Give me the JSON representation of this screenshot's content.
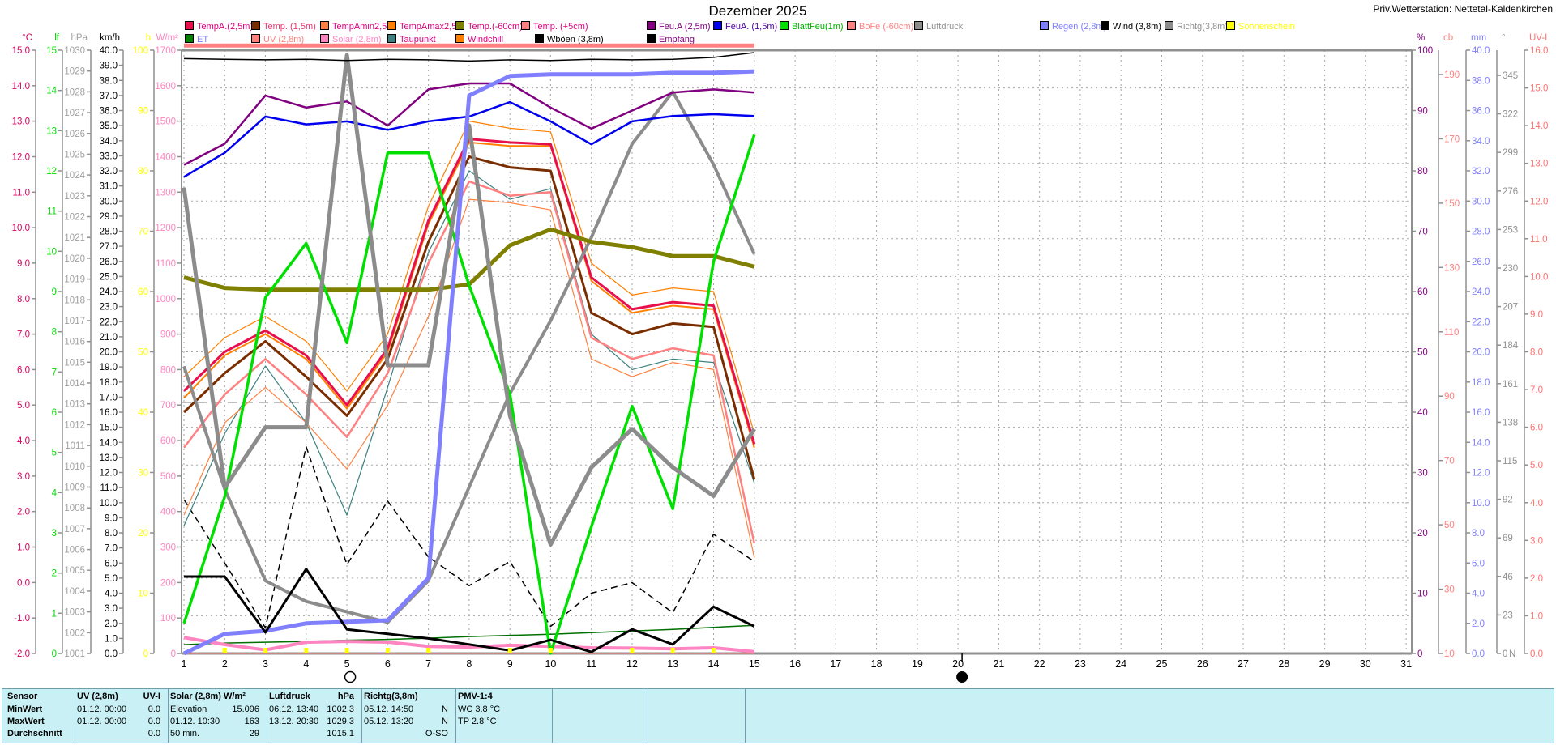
{
  "title": "Dezember 2025",
  "station": "Priv.Wetterstation: Nettetal-Kaldenkirchen",
  "legend": {
    "row1": [
      {
        "id": "tempA25",
        "label": "TempA.(2,5m)",
        "swatch": "#e8104c",
        "text": "#dd0080"
      },
      {
        "id": "temp15",
        "label": "Temp. (1,5m)",
        "swatch": "#7a2e00",
        "text": "#e8336e"
      },
      {
        "id": "tempAmin",
        "label": "TempAmin2,5m",
        "swatch": "#ff8040",
        "text": "#dd0080"
      },
      {
        "id": "tempAmax",
        "label": "TempAmax2,5m",
        "swatch": "#ff8000",
        "text": "#dd0080"
      },
      {
        "id": "tempM60",
        "label": "Temp.(-60cm)",
        "swatch": "#7f7f00",
        "text": "#dd0080"
      },
      {
        "id": "tempP5",
        "label": "Temp. (+5cm)",
        "swatch": "#ff8080",
        "text": "#dd0080"
      },
      {
        "id": "feuA25",
        "label": "Feu.A (2,5m)",
        "swatch": "#800080",
        "text": "#800080"
      },
      {
        "id": "feuA15",
        "label": "FeuA. (1,5m)",
        "swatch": "#0000ee",
        "text": "#5000a0"
      },
      {
        "id": "blattfeu",
        "label": "BlattFeu(1m)",
        "swatch": "#00e000",
        "text": "#00b000"
      },
      {
        "id": "bofe",
        "label": "BoFe (-60cm)",
        "swatch": "#ff8080",
        "text": "#ff8080"
      },
      {
        "id": "luftdruck",
        "label": "Luftdruck",
        "swatch": "#8c8c8c",
        "text": "#909090"
      },
      {
        "id": "regen",
        "label": "Regen (2,8m)",
        "swatch": "#8080ff",
        "text": "#8080ff"
      },
      {
        "id": "wind",
        "label": "Wind (3,8m)",
        "swatch": "#000000",
        "text": "#000000"
      },
      {
        "id": "richtg",
        "label": "Richtg(3,8m)",
        "swatch": "#8c8c8c",
        "text": "#909090"
      },
      {
        "id": "sonnenschein",
        "label": "Sonnenschein",
        "swatch": "#ffff00",
        "text": "#ffff00"
      }
    ],
    "row2": [
      {
        "id": "et",
        "label": "ET",
        "swatch": "#008000",
        "text": "#8080ff"
      },
      {
        "id": "uv",
        "label": "UV (2,8m)",
        "swatch": "#ff8080",
        "text": "#ff8080"
      },
      {
        "id": "solar",
        "label": "Solar (2,8m)",
        "swatch": "#ff85c2",
        "text": "#ff85c2"
      },
      {
        "id": "taupunkt",
        "label": "Taupunkt",
        "swatch": "#3d8080",
        "text": "#dd0080"
      },
      {
        "id": "windchill",
        "label": "Windchill",
        "swatch": "#ff8000",
        "text": "#dd0080"
      },
      {
        "id": "wboeen",
        "label": "Wböen (3,8m)",
        "swatch": "#000000",
        "text": "#000000"
      },
      {
        "id": "empfang",
        "label": "Empfang",
        "swatch": "#000000",
        "text": "#800080"
      }
    ]
  },
  "axes": {
    "left": [
      {
        "id": "celsius",
        "unit": "°C",
        "color": "#dd0060",
        "ticks": [
          "15.0",
          "14.0",
          "13.0",
          "12.0",
          "11.0",
          "10.0",
          "9.0",
          "8.0",
          "7.0",
          "6.0",
          "5.0",
          "4.0",
          "3.0",
          "2.0",
          "1.0",
          "0.0",
          "-1.0",
          "-2.0"
        ]
      },
      {
        "id": "lf",
        "unit": "lf",
        "color": "#00dd00",
        "ticks": [
          "15",
          "14",
          "13",
          "12",
          "11",
          "10",
          "9",
          "8",
          "7",
          "6",
          "5",
          "4",
          "3",
          "2",
          "1",
          "0"
        ]
      },
      {
        "id": "hpa",
        "unit": "hPa",
        "color": "#a0a0a0",
        "ticks": [
          "1030",
          "1029",
          "1028",
          "1027",
          "1026",
          "1025",
          "1024",
          "1023",
          "1022",
          "1021",
          "1020",
          "1019",
          "1018",
          "1017",
          "1016",
          "1015",
          "1014",
          "1013",
          "1012",
          "1011",
          "1010",
          "1009",
          "1008",
          "1007",
          "1006",
          "1005",
          "1004",
          "1003",
          "1002",
          "1001"
        ]
      },
      {
        "id": "kmh",
        "unit": "km/h",
        "color": "#000000",
        "ticks": [
          "40.0",
          "39.0",
          "38.0",
          "37.0",
          "36.0",
          "35.0",
          "34.0",
          "33.0",
          "32.0",
          "31.0",
          "30.0",
          "29.0",
          "28.0",
          "27.0",
          "26.0",
          "25.0",
          "24.0",
          "23.0",
          "22.0",
          "21.0",
          "20.0",
          "19.0",
          "18.0",
          "17.0",
          "16.0",
          "15.0",
          "14.0",
          "13.0",
          "12.0",
          "11.0",
          "10.0",
          "9.0",
          "8.0",
          "7.0",
          "6.0",
          "5.0",
          "4.0",
          "3.0",
          "2.0",
          "1.0",
          "0.0"
        ]
      },
      {
        "id": "h",
        "unit": "h",
        "color": "#ffff00",
        "ticks": [
          "100",
          "90",
          "80",
          "70",
          "60",
          "50",
          "40",
          "30",
          "20",
          "10",
          "0"
        ]
      },
      {
        "id": "wm2",
        "unit": "W/m²",
        "color": "#ff85c2",
        "ticks": [
          "1700",
          "1600",
          "1500",
          "1400",
          "1300",
          "1200",
          "1100",
          "1000",
          "900",
          "800",
          "700",
          "600",
          "500",
          "400",
          "300",
          "200",
          "100",
          "0"
        ]
      }
    ],
    "right": [
      {
        "id": "pct",
        "unit": "%",
        "color": "#800080",
        "ticks": [
          "100",
          "90",
          "80",
          "70",
          "60",
          "50",
          "40",
          "30",
          "20",
          "10",
          "0"
        ]
      },
      {
        "id": "cb",
        "unit": "cb",
        "color": "#ff8080",
        "ticks": [
          "190",
          "170",
          "150",
          "130",
          "110",
          "90",
          "70",
          "50",
          "30",
          "10"
        ]
      },
      {
        "id": "mm",
        "unit": "mm",
        "color": "#8080ff",
        "ticks": [
          "40.0",
          "38.0",
          "36.0",
          "34.0",
          "32.0",
          "30.0",
          "28.0",
          "26.0",
          "24.0",
          "22.0",
          "20.0",
          "18.0",
          "16.0",
          "14.0",
          "12.0",
          "10.0",
          "8.0",
          "6.0",
          "4.0",
          "2.0",
          "0.0"
        ]
      },
      {
        "id": "deg",
        "unit": "°",
        "color": "#909090",
        "ticks": [
          "345",
          "322",
          "299",
          "276",
          "253",
          "230",
          "207",
          "184",
          "161",
          "138",
          "115",
          "92",
          "69",
          "46",
          "23",
          "0"
        ],
        "bottom_label": "N"
      },
      {
        "id": "uvi",
        "unit": "UV-I",
        "color": "#ff7070",
        "ticks": [
          "16.0",
          "15.0",
          "14.0",
          "13.0",
          "12.0",
          "11.0",
          "10.0",
          "9.0",
          "8.0",
          "7.0",
          "6.0",
          "5.0",
          "4.0",
          "3.0",
          "2.0",
          "1.0",
          "0.0"
        ]
      }
    ]
  },
  "x_axis": {
    "days": [
      "1",
      "2",
      "3",
      "4",
      "5",
      "6",
      "7",
      "8",
      "9",
      "10",
      "11",
      "12",
      "13",
      "14",
      "15",
      "16",
      "17",
      "18",
      "19",
      "20",
      "21",
      "22",
      "23",
      "24",
      "25",
      "26",
      "27",
      "28",
      "29",
      "30",
      "31"
    ],
    "sun_days": [
      2,
      3,
      4,
      5,
      6,
      7,
      9,
      10,
      12,
      13,
      14
    ],
    "moon_markers": [
      {
        "day": 5,
        "type": "open-circle"
      },
      {
        "day": 20,
        "type": "filled-circle"
      }
    ]
  },
  "chart_data": {
    "type": "line",
    "title": "Dezember 2025",
    "x_days": [
      1,
      2,
      3,
      4,
      5,
      6,
      7,
      8,
      9,
      10,
      11,
      12,
      13,
      14,
      15
    ],
    "x_range": [
      1,
      31
    ],
    "grid": "dashed",
    "series": [
      {
        "id": "et",
        "name": "ET",
        "axis": "lf",
        "color": "#007000",
        "width": 1.5,
        "values": [
          0.22,
          0.26,
          0.28,
          0.3,
          0.33,
          0.35,
          0.38,
          0.42,
          0.45,
          0.48,
          0.52,
          0.56,
          0.6,
          0.65,
          0.7
        ]
      },
      {
        "id": "uv",
        "name": "UV (2,8m)",
        "axis": "uvi",
        "color": "#ff8080",
        "width": 1,
        "values": [
          0,
          0,
          0,
          0,
          0,
          0,
          0,
          0,
          0,
          0,
          0,
          0,
          0,
          0,
          0
        ]
      },
      {
        "id": "wboeen",
        "name": "Wböen (3,8m)",
        "axis": "kmh",
        "color": "#000000",
        "width": 1.5,
        "dash": "8,5",
        "values": [
          10.2,
          6.0,
          1.7,
          13.7,
          5.9,
          10.1,
          6.4,
          4.5,
          6.1,
          1.8,
          4.0,
          4.7,
          2.7,
          7.9,
          6.1
        ]
      },
      {
        "id": "taupunkt",
        "name": "Taupunkt",
        "axis": "celsius",
        "color": "#3d8080",
        "width": 1.2,
        "values": [
          1.6,
          4.2,
          6.1,
          4.5,
          1.9,
          5.5,
          9.3,
          11.6,
          10.8,
          11.1,
          7.0,
          6.0,
          6.3,
          6.2,
          2.8
        ]
      },
      {
        "id": "tempAmin",
        "name": "TempAmin2,5m",
        "axis": "celsius",
        "color": "#ff8040",
        "width": 1.2,
        "values": [
          1.9,
          4.5,
          5.5,
          4.5,
          3.2,
          5.0,
          7.5,
          10.8,
          10.7,
          10.5,
          6.3,
          5.8,
          6.2,
          6.0,
          0.7
        ]
      },
      {
        "id": "tempAmax",
        "name": "TempAmax2,5m",
        "axis": "celsius",
        "color": "#ff8000",
        "width": 1.2,
        "values": [
          5.8,
          6.9,
          7.5,
          6.8,
          5.4,
          7.0,
          10.6,
          13.0,
          12.8,
          12.7,
          9.0,
          8.1,
          8.3,
          8.2,
          4.2
        ]
      },
      {
        "id": "windchill",
        "name": "Windchill",
        "axis": "celsius",
        "color": "#ff8000",
        "width": 2,
        "values": [
          5.2,
          6.4,
          7.0,
          6.3,
          4.9,
          6.5,
          10.1,
          12.4,
          12.3,
          12.3,
          8.5,
          7.6,
          7.8,
          7.7,
          3.8
        ]
      },
      {
        "id": "tempP5",
        "name": "Temp. (+5cm)",
        "axis": "celsius",
        "color": "#ff8080",
        "width": 2.5,
        "values": [
          3.8,
          5.3,
          6.3,
          5.3,
          4.1,
          5.9,
          9.0,
          11.3,
          10.9,
          11.0,
          6.9,
          6.3,
          6.6,
          6.4,
          1.1
        ]
      },
      {
        "id": "temp15",
        "name": "Temp. (1,5m)",
        "axis": "celsius",
        "color": "#7a2e00",
        "width": 3,
        "values": [
          4.8,
          5.9,
          6.8,
          5.8,
          4.7,
          6.3,
          9.6,
          12.0,
          11.7,
          11.6,
          7.6,
          7.0,
          7.3,
          7.2,
          2.9
        ]
      },
      {
        "id": "tempA25",
        "name": "TempA.(2,5m)",
        "axis": "celsius",
        "color": "#e8104c",
        "width": 3,
        "values": [
          5.4,
          6.5,
          7.1,
          6.4,
          5.0,
          6.6,
          10.2,
          12.5,
          12.4,
          12.35,
          8.6,
          7.7,
          7.9,
          7.8,
          3.9
        ]
      },
      {
        "id": "solar",
        "name": "Solar (2,8m)",
        "axis": "wm2",
        "color": "#ff85c2",
        "width": 4,
        "values": [
          45,
          25,
          10,
          32,
          34,
          32,
          20,
          18,
          23,
          20,
          16,
          15,
          13,
          16,
          5
        ]
      },
      {
        "id": "luftdruck",
        "name": "Luftdruck",
        "axis": "hpa",
        "color": "#8c8c8c",
        "width": 4,
        "values": [
          1014.8,
          1008.9,
          1004.5,
          1003.5,
          1003.0,
          1002.5,
          1004.5,
          1009,
          1013.5,
          1017,
          1021,
          1025.5,
          1028,
          1024.5,
          1020.2
        ]
      },
      {
        "id": "tempM60",
        "name": "Temp.(-60cm)",
        "axis": "celsius",
        "color": "#7f7f00",
        "width": 5,
        "values": [
          8.6,
          8.3,
          8.25,
          8.25,
          8.25,
          8.25,
          8.25,
          8.4,
          9.5,
          9.95,
          9.6,
          9.45,
          9.2,
          9.2,
          8.9
        ]
      },
      {
        "id": "blattfeu",
        "name": "BlattFeu(1m)",
        "axis": "pct",
        "color": "#00e000",
        "width": 3.5,
        "values": [
          5,
          26,
          59,
          68,
          51.5,
          83,
          83,
          61,
          43,
          0,
          21,
          41,
          24,
          65,
          86
        ]
      },
      {
        "id": "feuA15",
        "name": "FeuA. (1,5m)",
        "axis": "pct",
        "color": "#0000ee",
        "width": 2.5,
        "values": [
          79,
          83,
          89,
          87.7,
          88.2,
          86.8,
          88.2,
          89,
          91.4,
          88.2,
          84.4,
          88.2,
          89.1,
          89.4,
          89.1
        ]
      },
      {
        "id": "feuA25",
        "name": "Feu.A (2,5m)",
        "axis": "pct",
        "color": "#800080",
        "width": 2.5,
        "values": [
          81,
          84.5,
          92.5,
          90.5,
          91.5,
          87.5,
          93.5,
          94.5,
          94.5,
          90.5,
          87,
          90,
          93,
          93.5,
          93
        ]
      },
      {
        "id": "richtg",
        "name": "Richtg(3,8m)",
        "axis": "deg",
        "color": "#8c8c8c",
        "width": 5,
        "values": [
          278,
          99,
          135,
          135,
          357,
          172,
          172,
          315,
          142,
          65,
          111,
          134,
          111,
          94,
          134
        ]
      },
      {
        "id": "regen",
        "name": "Regen (2,8m)",
        "axis": "mm",
        "color": "#8080ff",
        "width": 5,
        "values": [
          0,
          1.3,
          1.5,
          2.0,
          2.1,
          2.2,
          5.0,
          37.0,
          38.3,
          38.4,
          38.4,
          38.4,
          38.5,
          38.5,
          38.6
        ]
      },
      {
        "id": "wind",
        "name": "Wind (3,8m)",
        "axis": "kmh",
        "color": "#000000",
        "width": 3,
        "values": [
          5.1,
          5.1,
          1.4,
          5.6,
          1.6,
          1.3,
          1.0,
          0.6,
          0.2,
          0.9,
          0.1,
          1.6,
          0.6,
          3.1,
          1.8
        ]
      },
      {
        "id": "bofe",
        "name": "BoFe (-60cm)",
        "axis": "cb",
        "color": "#ff8080",
        "width": 5,
        "values": [
          199,
          199,
          199,
          199,
          199,
          199,
          199,
          199,
          199,
          199,
          199,
          199,
          199,
          199,
          199
        ]
      },
      {
        "id": "empfang",
        "name": "Empfang",
        "axis": "pct",
        "color": "#000000",
        "width": 1.5,
        "values": [
          98.6,
          98.5,
          98.4,
          98.5,
          98.3,
          98.5,
          98.4,
          98.2,
          98.4,
          98.3,
          98.5,
          98.4,
          98.5,
          98.8,
          99.6
        ]
      }
    ]
  },
  "table": {
    "row_headers": [
      "Sensor",
      "MinWert",
      "MaxWert",
      "Durchschnitt"
    ],
    "columns": [
      {
        "header_left": "UV (2,8m)",
        "header_right": "UV-I",
        "rows": [
          [
            "01.12.  00:00",
            "0.0"
          ],
          [
            "01.12.  00:00",
            "0.0"
          ],
          [
            "",
            "0.0"
          ]
        ]
      },
      {
        "header_left": "Solar (2,8m) W/m²",
        "header_right": "",
        "rows": [
          [
            "Elevation",
            "15.096"
          ],
          [
            "01.12.  10:30",
            "163"
          ],
          [
            "50 min.",
            "29"
          ]
        ]
      },
      {
        "header_left": "Luftdruck",
        "header_right": "hPa",
        "rows": [
          [
            "06.12.  13:40",
            "1002.3"
          ],
          [
            "13.12.  20:30",
            "1029.3"
          ],
          [
            "",
            "1015.1"
          ]
        ]
      },
      {
        "header_left": "Richtg(3,8m)",
        "header_right": "",
        "rows": [
          [
            "05.12.  14:50",
            "N"
          ],
          [
            "05.12.  13:20",
            "N"
          ],
          [
            "",
            "O-SO"
          ]
        ]
      },
      {
        "header_left": "PMV-1:4",
        "header_right": "",
        "rows": [
          [
            "WC 3.8 °C",
            ""
          ],
          [
            "TP 2.8 °C",
            ""
          ],
          [
            "",
            ""
          ]
        ]
      },
      {
        "header_left": "",
        "header_right": "",
        "rows": [
          [
            "",
            ""
          ],
          [
            "",
            ""
          ],
          [
            "",
            ""
          ]
        ]
      },
      {
        "header_left": "",
        "header_right": "",
        "rows": [
          [
            "",
            ""
          ],
          [
            "",
            ""
          ],
          [
            "",
            ""
          ]
        ]
      },
      {
        "header_left": "",
        "header_right": "",
        "rows": [
          [
            "",
            ""
          ],
          [
            "",
            ""
          ],
          [
            "",
            ""
          ]
        ]
      }
    ]
  }
}
